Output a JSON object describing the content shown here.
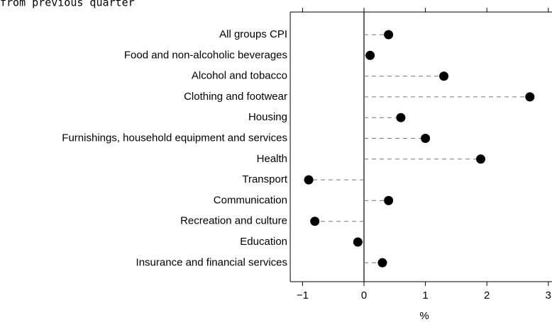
{
  "chart_data": {
    "type": "dot",
    "title": "from previous quarter",
    "x_label": "%",
    "categories": [
      "All groups CPI",
      "Food and non-alcoholic beverages",
      "Alcohol and tobacco",
      "Clothing and footwear",
      "Housing",
      "Furnishings, household equipment and services",
      "Health",
      "Transport",
      "Communication",
      "Recreation and culture",
      "Education",
      "Insurance and financial services"
    ],
    "values": [
      0.4,
      0.1,
      1.3,
      2.7,
      0.6,
      1.0,
      1.9,
      -0.9,
      0.4,
      -0.8,
      -0.1,
      0.3
    ],
    "color": "#000000",
    "xlim": [
      -1.2,
      3.2
    ],
    "xticks": [
      {
        "value": -1,
        "label": "−1"
      },
      0,
      1,
      2,
      3
    ]
  }
}
